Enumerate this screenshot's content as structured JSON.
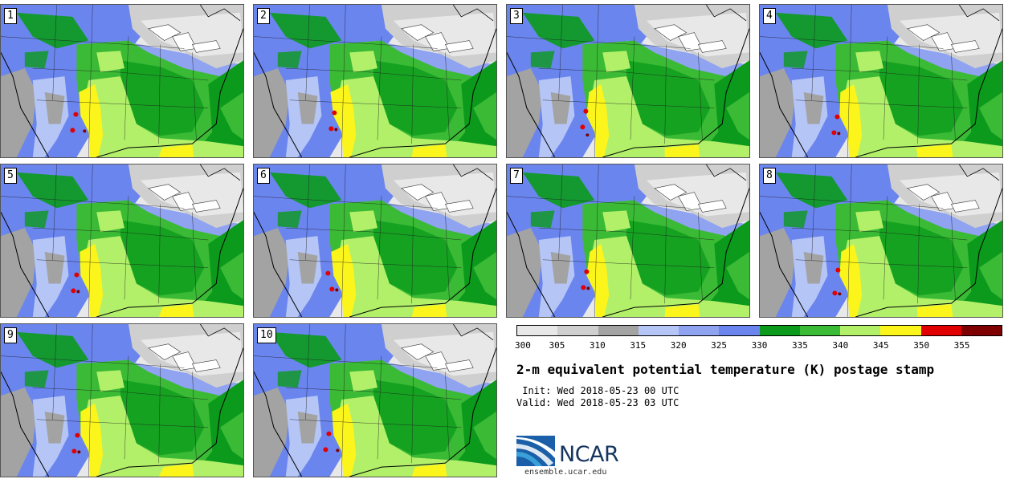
{
  "panels": [
    {
      "label": "1"
    },
    {
      "label": "2"
    },
    {
      "label": "3"
    },
    {
      "label": "4"
    },
    {
      "label": "5"
    },
    {
      "label": "6"
    },
    {
      "label": "7"
    },
    {
      "label": "8"
    },
    {
      "label": "9"
    },
    {
      "label": "10"
    }
  ],
  "colorbar": {
    "colors": [
      "#e8e8e8",
      "#cfcfcf",
      "#a3a3a3",
      "#b5c5f5",
      "#8fa3f1",
      "#6b85ef",
      "#0b9a1b",
      "#3bba35",
      "#b2f06a",
      "#fbf51b",
      "#e00000",
      "#7e0000"
    ],
    "labels": [
      "300",
      "305",
      "310",
      "315",
      "320",
      "325",
      "330",
      "335",
      "340",
      "345",
      "350",
      "355"
    ]
  },
  "title": "2-m equivalent potential temperature (K) postage stamp",
  "init": " Init: Wed 2018-05-23 00 UTC",
  "valid": "Valid: Wed 2018-05-23 03 UTC",
  "logo": {
    "text": "NCAR",
    "url": "ensemble.ucar.edu"
  }
}
